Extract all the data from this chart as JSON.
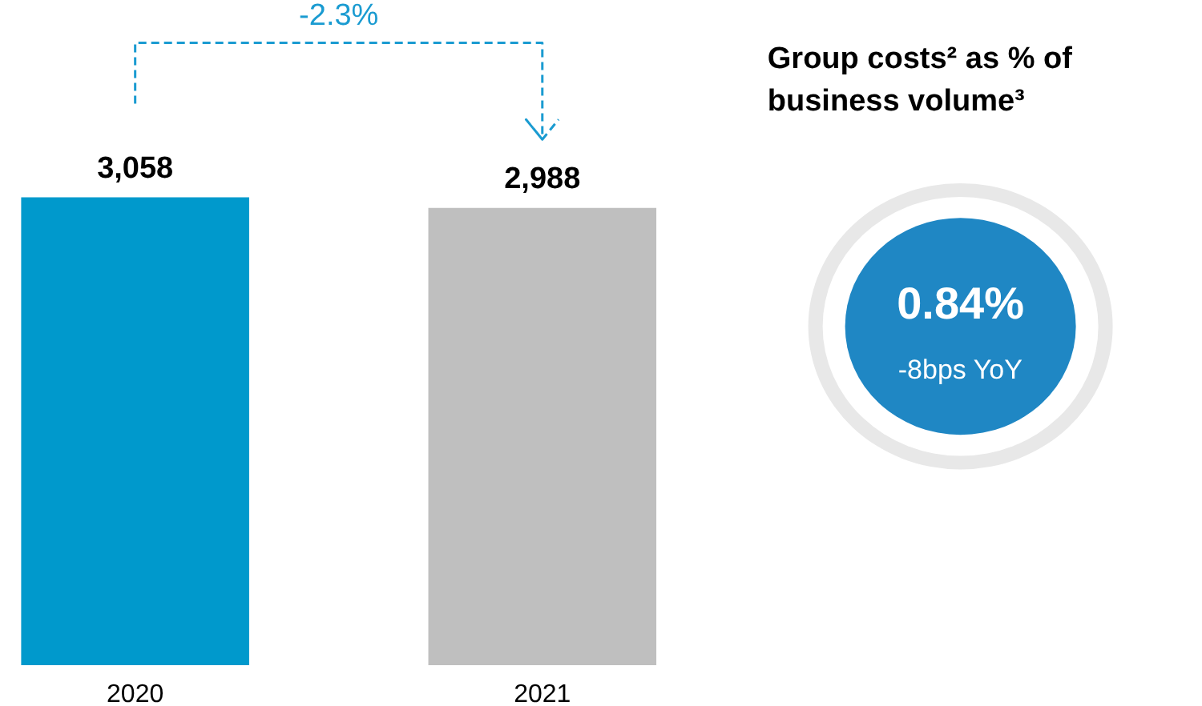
{
  "chart_data": [
    {
      "type": "bar",
      "categories": [
        "2020",
        "2021"
      ],
      "colors": [
        "#0099cc",
        "#bfbfbf"
      ],
      "values": [
        3058,
        2988
      ],
      "data_labels": true,
      "value_labels": [
        "3,058",
        "2,988"
      ],
      "annotations": [
        "-2.3%"
      ]
    },
    {
      "type": "other",
      "title": "Group costs² as % of\nbusiness volume³",
      "annotations": [
        "0.84%",
        "-8bps YoY"
      ]
    }
  ]
}
